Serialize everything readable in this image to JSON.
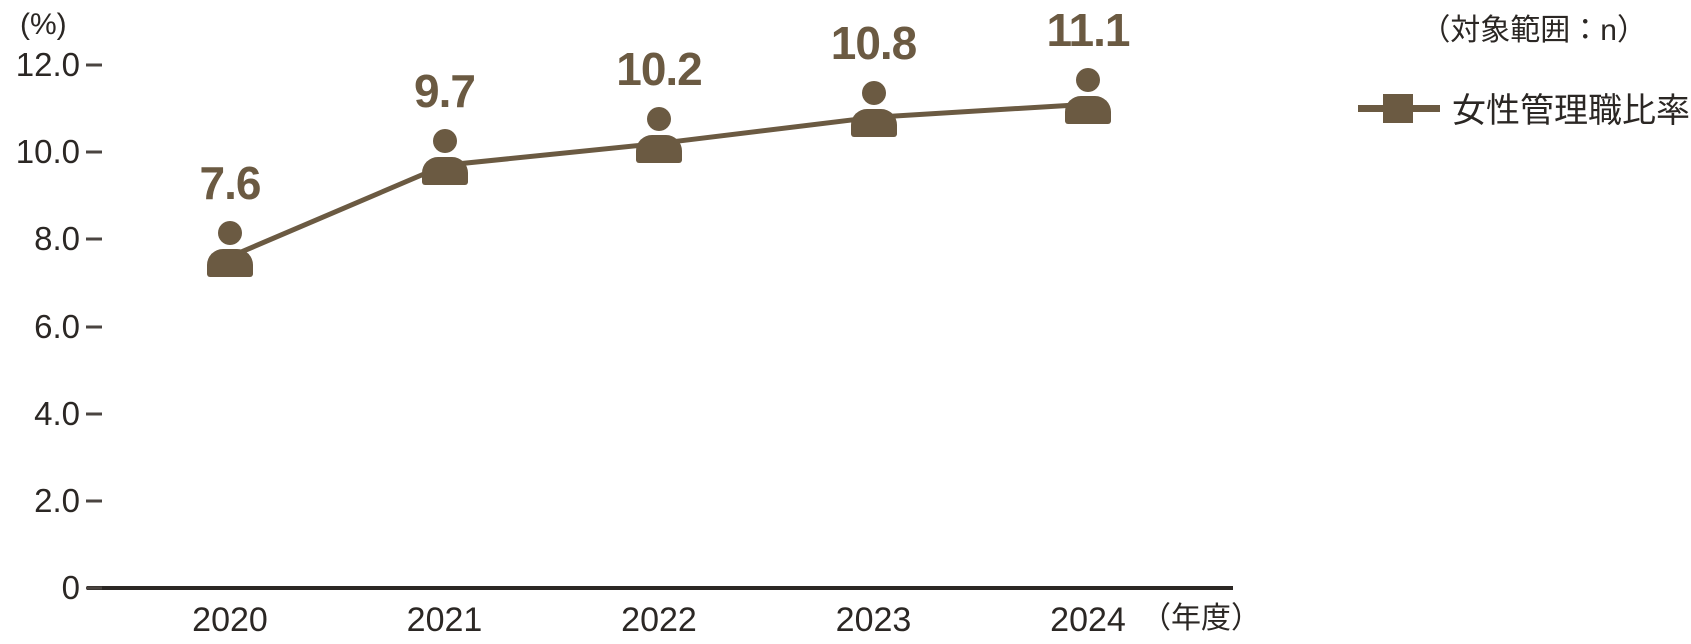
{
  "chart_data": {
    "type": "line",
    "title": "",
    "categories": [
      "2020",
      "2021",
      "2022",
      "2023",
      "2024"
    ],
    "series": [
      {
        "name": "女性管理職比率",
        "values": [
          7.6,
          9.7,
          10.2,
          10.8,
          11.1
        ]
      }
    ],
    "data_labels": [
      "7.6",
      "9.7",
      "10.2",
      "10.8",
      "11.1"
    ],
    "y_axis": {
      "unit_label": "(%)",
      "ticks": [
        "12.0",
        "10.0",
        "8.0",
        "6.0",
        "4.0",
        "2.0",
        "0"
      ],
      "tick_values": [
        12,
        10,
        8,
        6,
        4,
        2,
        0
      ],
      "range": [
        0,
        12
      ]
    },
    "x_axis": {
      "unit_label": "（年度）"
    },
    "legend": {
      "position": "top-right",
      "entries": [
        {
          "label": "女性管理職比率",
          "marker": "square-on-line"
        }
      ]
    },
    "scope_note": "（対象範囲：n）",
    "grid": false,
    "marker_icon": "person-icon",
    "colors": {
      "series": "#6b5a42",
      "text": "#2b2724",
      "axis": "#2b2724"
    }
  }
}
